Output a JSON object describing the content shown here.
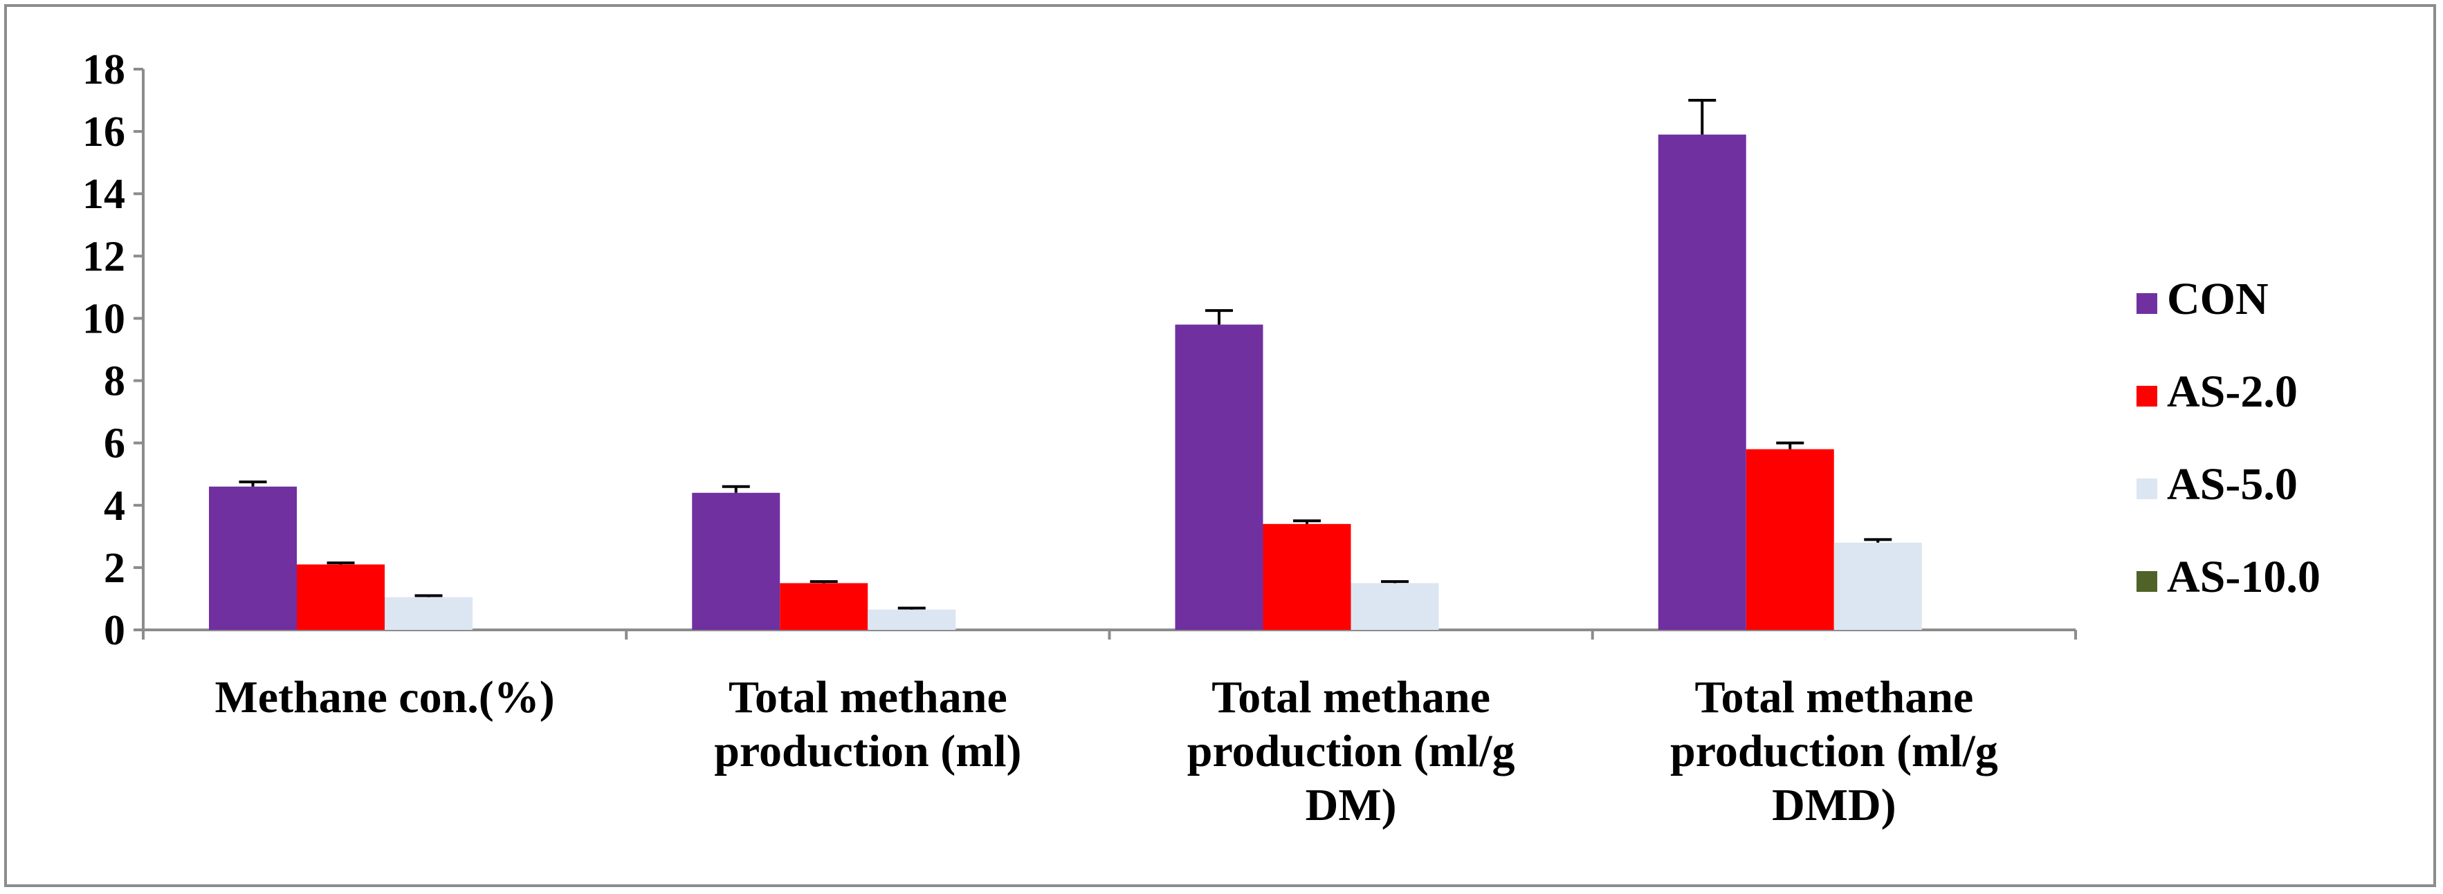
{
  "chart_data": {
    "type": "bar",
    "title": "",
    "xlabel": "",
    "ylabel": "",
    "ylim": [
      0,
      18
    ],
    "yticks": [
      "0",
      "2",
      "4",
      "6",
      "8",
      "10",
      "12",
      "14",
      "16",
      "18"
    ],
    "grid": false,
    "legend_position": "right",
    "categories": [
      [
        "Methane con.(%)"
      ],
      [
        "Total methane",
        "production (ml)"
      ],
      [
        "Total methane",
        "production (ml/g",
        "DM)"
      ],
      [
        "Total methane",
        "production (ml/g",
        "DMD)"
      ]
    ],
    "series": [
      {
        "name": "CON",
        "color": "#7030a0",
        "values": [
          4.6,
          4.4,
          9.8,
          15.9
        ],
        "errors": [
          0.15,
          0.2,
          0.45,
          1.1
        ]
      },
      {
        "name": "AS-2.0",
        "color": "#ff0000",
        "values": [
          2.1,
          1.5,
          3.4,
          5.8
        ],
        "errors": [
          0.05,
          0.05,
          0.1,
          0.2
        ]
      },
      {
        "name": "AS-5.0",
        "color": "#dce6f2",
        "values": [
          1.05,
          0.65,
          1.5,
          2.8
        ],
        "errors": [
          0.05,
          0.05,
          0.05,
          0.1
        ]
      },
      {
        "name": "AS-10.0",
        "color": "#4f6228",
        "values": [
          0,
          0,
          0,
          0
        ],
        "errors": [
          0,
          0,
          0,
          0
        ]
      }
    ]
  }
}
